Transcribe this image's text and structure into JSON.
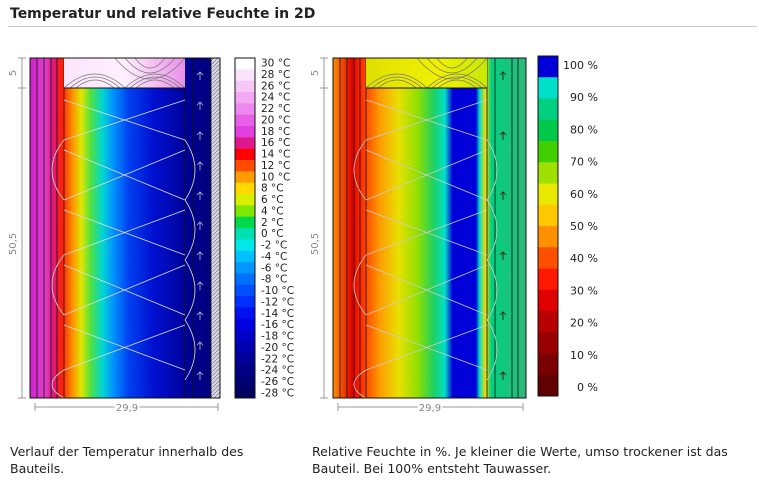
{
  "header": {
    "title": "Temperatur und relative Feuchte in 2D"
  },
  "temperature_panel": {
    "dim_offset": "5",
    "dim_height": "50,5",
    "dim_width": "29,9",
    "legend": {
      "labels": [
        "30 °C",
        "28 °C",
        "26 °C",
        "24 °C",
        "22 °C",
        "20 °C",
        "18 °C",
        "16 °C",
        "14 °C",
        "12 °C",
        "10 °C",
        "8 °C",
        "6 °C",
        "4 °C",
        "2 °C",
        "0 °C",
        "-2 °C",
        "-4 °C",
        "-6 °C",
        "-8 °C",
        "-10 °C",
        "-12 °C",
        "-14 °C",
        "-16 °C",
        "-18 °C",
        "-20 °C",
        "-22 °C",
        "-24 °C",
        "-26 °C",
        "-28 °C"
      ],
      "colors": [
        "#ffffff",
        "#fbe4fb",
        "#f6c6f6",
        "#f3a8f3",
        "#ee88ee",
        "#e860e8",
        "#e040e0",
        "#e0188c",
        "#ff0000",
        "#ff4a00",
        "#ff9a00",
        "#ffd800",
        "#d8f000",
        "#80e800",
        "#00d84a",
        "#00e0b0",
        "#00e8e8",
        "#00c0ff",
        "#0098ff",
        "#0070ff",
        "#0050ff",
        "#0030ff",
        "#0010f0",
        "#0000e0",
        "#0000c8",
        "#0000b0",
        "#000098",
        "#000084",
        "#000072",
        "#000060"
      ]
    },
    "caption": "Verlauf der Temperatur innerhalb des Bauteils."
  },
  "humidity_panel": {
    "dim_offset": "5",
    "dim_height": "50,5",
    "dim_width": "29,9",
    "legend": {
      "labels": [
        "100 %",
        "90 %",
        "80 %",
        "70 %",
        "60 %",
        "50 %",
        "40 %",
        "30 %",
        "20 %",
        "10 %",
        "0 %"
      ],
      "colors": [
        "#0000d8",
        "#00e0c8",
        "#00d080",
        "#00c84a",
        "#40d000",
        "#a0e000",
        "#e8e800",
        "#ffc800",
        "#ff9000",
        "#ff5000",
        "#ff1800",
        "#e00000",
        "#b80000",
        "#980000",
        "#7a0000",
        "#600000"
      ]
    },
    "caption": "Relative Feuchte in %. Je kleiner die Werte, umso trockener ist das Bauteil. Bei 100% entsteht Tauwasser."
  }
}
